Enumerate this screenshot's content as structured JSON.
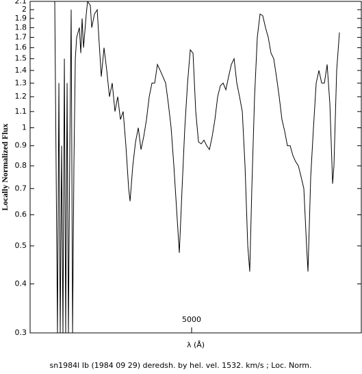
{
  "chart_data": {
    "type": "line",
    "xlabel": "λ (Å)",
    "ylabel": "Locally Normalized Flux",
    "caption": "sn1984l Ib (1984 09 29) deredsh. by hel. vel.  1532. km/s ;  Loc. Norm.",
    "log_y": true,
    "color": "#000000",
    "xlim": [
      3053,
      7046
    ],
    "xticks": [
      5000
    ],
    "ylim": [
      0.3,
      2.1
    ],
    "yticks": [
      0.3,
      0.4,
      0.5,
      0.6,
      0.7,
      0.8,
      0.9,
      1,
      1.1,
      1.2,
      1.3,
      1.4,
      1.5,
      1.6,
      1.7,
      1.8,
      1.9,
      2,
      2.1
    ],
    "x": [
      3350,
      3383,
      3400,
      3416,
      3433,
      3449,
      3466,
      3482,
      3499,
      3515,
      3532,
      3548,
      3565,
      3581,
      3598,
      3614,
      3647,
      3664,
      3680,
      3697,
      3730,
      3746,
      3779,
      3796,
      3829,
      3862,
      3878,
      3911,
      3944,
      3977,
      4010,
      4043,
      4076,
      4109,
      4142,
      4175,
      4208,
      4241,
      4258,
      4291,
      4324,
      4357,
      4390,
      4423,
      4456,
      4489,
      4522,
      4555,
      4588,
      4621,
      4654,
      4687,
      4720,
      4753,
      4786,
      4819,
      4852,
      4885,
      4918,
      4951,
      4984,
      5017,
      5050,
      5083,
      5116,
      5149,
      5182,
      5215,
      5248,
      5281,
      5314,
      5347,
      5380,
      5413,
      5446,
      5479,
      5512,
      5545,
      5578,
      5611,
      5644,
      5677,
      5701,
      5726,
      5759,
      5792,
      5825,
      5858,
      5891,
      5924,
      5957,
      5990,
      6023,
      6056,
      6089,
      6122,
      6155,
      6188,
      6221,
      6254,
      6287,
      6320,
      6353,
      6386,
      6403,
      6436,
      6469,
      6502,
      6535,
      6568,
      6601,
      6634,
      6667,
      6700,
      6716,
      6749,
      6782
    ],
    "values": [
      2.1,
      0.3,
      1.3,
      0.3,
      0.9,
      0.3,
      1.5,
      0.3,
      1.3,
      0.3,
      0.9,
      2.0,
      0.3,
      0.8,
      1.5,
      1.7,
      1.8,
      1.55,
      1.9,
      1.6,
      1.95,
      2.1,
      2.05,
      1.8,
      1.95,
      2.0,
      1.75,
      1.35,
      1.6,
      1.4,
      1.2,
      1.3,
      1.1,
      1.2,
      1.05,
      1.1,
      0.9,
      0.7,
      0.65,
      0.8,
      0.92,
      1.0,
      0.88,
      0.95,
      1.05,
      1.2,
      1.3,
      1.3,
      1.45,
      1.4,
      1.35,
      1.3,
      1.15,
      1.0,
      0.8,
      0.62,
      0.48,
      0.7,
      1.0,
      1.3,
      1.58,
      1.55,
      1.1,
      0.92,
      0.91,
      0.93,
      0.9,
      0.88,
      0.95,
      1.05,
      1.2,
      1.28,
      1.3,
      1.25,
      1.35,
      1.45,
      1.5,
      1.3,
      1.2,
      1.1,
      0.8,
      0.5,
      0.43,
      0.7,
      1.2,
      1.7,
      1.95,
      1.93,
      1.8,
      1.7,
      1.55,
      1.5,
      1.35,
      1.2,
      1.05,
      0.98,
      0.9,
      0.9,
      0.85,
      0.82,
      0.8,
      0.75,
      0.7,
      0.5,
      0.43,
      0.75,
      1.0,
      1.3,
      1.4,
      1.3,
      1.3,
      1.45,
      1.15,
      0.72,
      0.8,
      1.4,
      1.75
    ]
  }
}
